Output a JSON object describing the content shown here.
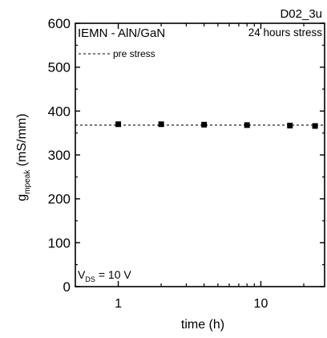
{
  "chart_data": {
    "type": "scatter",
    "corner_label": "D02_3u",
    "annotation_device": "IEMN - AlN/GaN",
    "annotation_stress": "24 hours stress",
    "annotation_stress_color": "#1f1fd6",
    "legend_label": "pre stress",
    "pre_stress_value": 368,
    "bias_label_main": "V",
    "bias_label_sub": "DS",
    "bias_label_value": "= 10 V",
    "ylabel_main": "g",
    "ylabel_sub": "mpeak",
    "ylabel_unit": " (mS/mm)",
    "xlabel": "time (h)",
    "xscale": "log",
    "xlim": [
      0.5,
      28
    ],
    "ylim": [
      0,
      600
    ],
    "yticks": [
      0,
      100,
      200,
      300,
      400,
      500,
      600
    ],
    "xticks_major": [
      1,
      10
    ],
    "xticks_minor": [
      2,
      3,
      4,
      5,
      6,
      7,
      8,
      9,
      20
    ],
    "series": [
      {
        "x": [
          1,
          2,
          4,
          8,
          16,
          24
        ],
        "y": [
          370,
          370,
          369,
          368,
          367,
          366
        ]
      }
    ]
  }
}
